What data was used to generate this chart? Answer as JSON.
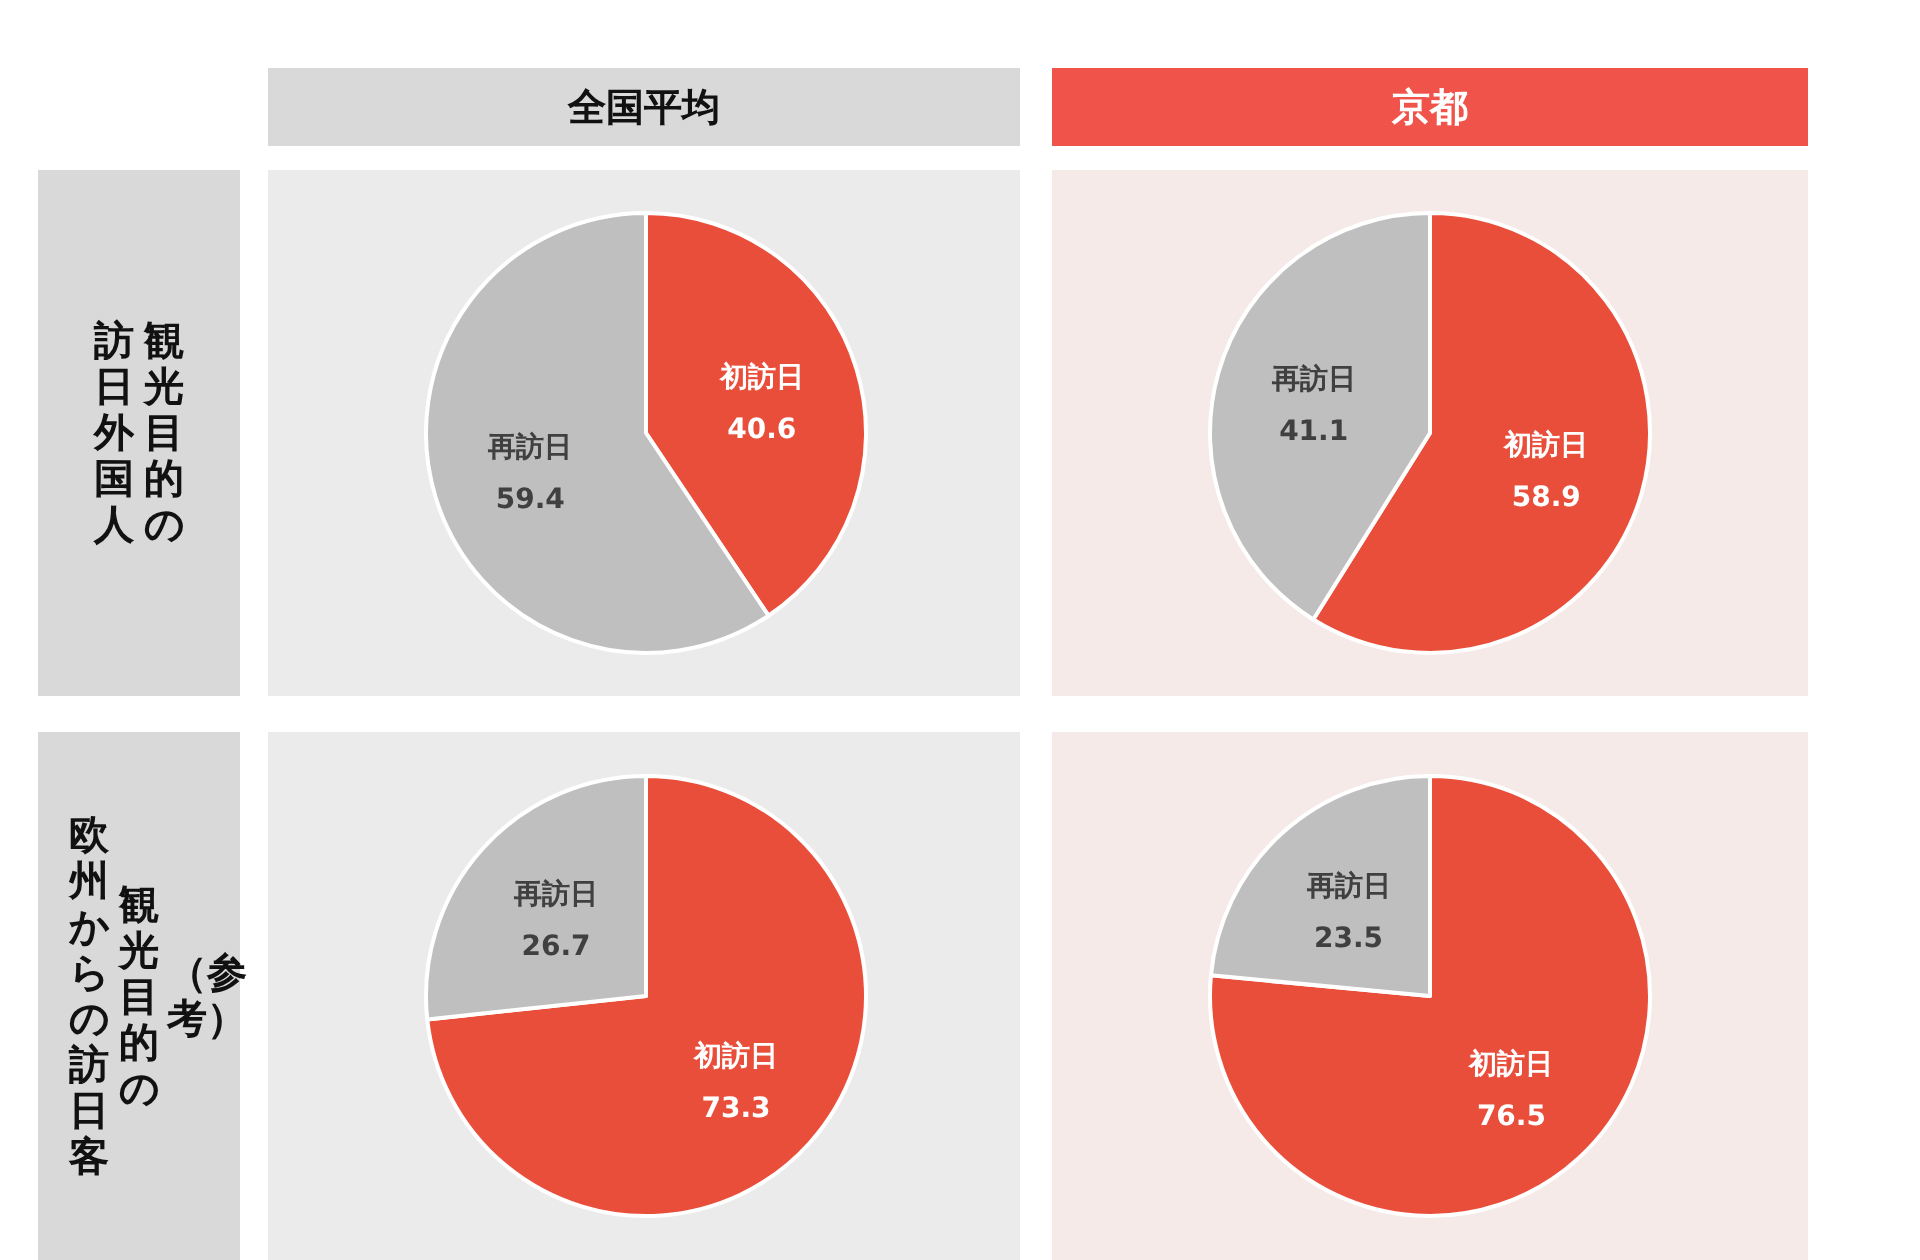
{
  "chart_data": [
    {
      "type": "pie",
      "title": "全国平均",
      "annotations": [
        "観光目的の",
        "訪日外国人"
      ],
      "categories": [
        "初訪日",
        "再訪日"
      ],
      "values": [
        40.6,
        59.4
      ],
      "colors": [
        "#e94e3a",
        "#bfbfbf"
      ],
      "data_labels": true
    },
    {
      "type": "pie",
      "title": "京都",
      "categories": [
        "初訪日",
        "再訪日"
      ],
      "values": [
        58.9,
        41.1
      ],
      "colors": [
        "#e94e3a",
        "#bfbfbf"
      ],
      "data_labels": true
    },
    {
      "type": "pie",
      "annotations": [
        "（参考）",
        "観光目的の",
        "欧州からの訪日客"
      ],
      "categories": [
        "初訪日",
        "再訪日"
      ],
      "values": [
        73.3,
        26.7
      ],
      "colors": [
        "#e94e3a",
        "#bfbfbf"
      ],
      "data_labels": true
    },
    {
      "type": "pie",
      "categories": [
        "初訪日",
        "再訪日"
      ],
      "values": [
        76.5,
        23.5
      ],
      "colors": [
        "#e94e3a",
        "#bfbfbf"
      ],
      "data_labels": true
    }
  ]
}
